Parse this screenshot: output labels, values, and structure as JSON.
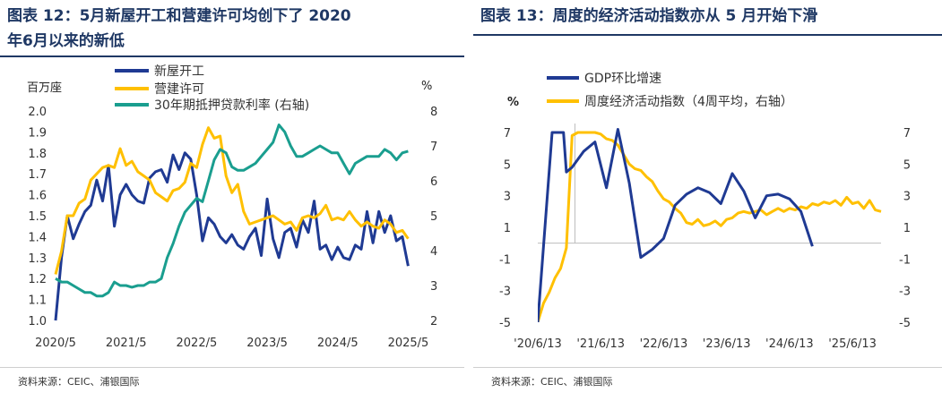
{
  "left": {
    "title_line1": "图表 12：5月新屋开工和营建许可均创下了 2020",
    "title_line2": "年6月以来的新低",
    "source": "资料来源：CEIC、浦银国际",
    "colors": {
      "starts": "#1f3a93",
      "permits": "#ffc000",
      "rate": "#1a9e8f"
    },
    "chart_data": {
      "type": "line",
      "left_axis_unit": "百万座",
      "right_axis_unit": "%",
      "x_tick_labels": [
        "2020/5",
        "2021/5",
        "2022/5",
        "2023/5",
        "2024/5",
        "2025/5"
      ],
      "y_left_ticks": [
        "1.0",
        "1.1",
        "1.2",
        "1.3",
        "1.4",
        "1.5",
        "1.6",
        "1.7",
        "1.8",
        "1.9",
        "2.0"
      ],
      "y_right_ticks": [
        "2",
        "3",
        "4",
        "5",
        "6",
        "7",
        "8"
      ],
      "y_left_range": [
        1.0,
        2.0
      ],
      "y_right_range": [
        2,
        8
      ],
      "x_range": [
        0,
        61
      ],
      "series": [
        {
          "name": "新屋开工",
          "axis": "left",
          "color": "#1f3a93",
          "x": [
            0,
            1,
            2,
            3,
            4,
            5,
            6,
            7,
            8,
            9,
            10,
            11,
            12,
            13,
            14,
            15,
            16,
            17,
            18,
            19,
            20,
            21,
            22,
            23,
            24,
            25,
            26,
            27,
            28,
            29,
            30,
            31,
            32,
            33,
            34,
            35,
            36,
            37,
            38,
            39,
            40,
            41,
            42,
            43,
            44,
            45,
            46,
            47,
            48,
            49,
            50,
            51,
            52,
            53,
            54,
            55,
            56,
            57,
            58,
            59,
            60
          ],
          "values": [
            1.0,
            1.3,
            1.5,
            1.39,
            1.46,
            1.52,
            1.55,
            1.67,
            1.57,
            1.74,
            1.45,
            1.6,
            1.65,
            1.6,
            1.57,
            1.56,
            1.68,
            1.71,
            1.72,
            1.66,
            1.79,
            1.72,
            1.8,
            1.77,
            1.6,
            1.38,
            1.49,
            1.46,
            1.4,
            1.37,
            1.41,
            1.36,
            1.34,
            1.4,
            1.44,
            1.31,
            1.58,
            1.39,
            1.3,
            1.42,
            1.44,
            1.35,
            1.48,
            1.42,
            1.57,
            1.34,
            1.36,
            1.29,
            1.35,
            1.3,
            1.29,
            1.36,
            1.34,
            1.52,
            1.37,
            1.52,
            1.42,
            1.5,
            1.38,
            1.4,
            1.26
          ]
        },
        {
          "name": "营建许可",
          "axis": "left",
          "color": "#ffc000",
          "x": [
            0,
            1,
            2,
            3,
            4,
            5,
            6,
            7,
            8,
            9,
            10,
            11,
            12,
            13,
            14,
            15,
            16,
            17,
            18,
            19,
            20,
            21,
            22,
            23,
            24,
            25,
            26,
            27,
            28,
            29,
            30,
            31,
            32,
            33,
            34,
            35,
            36,
            37,
            38,
            39,
            40,
            41,
            42,
            43,
            44,
            45,
            46,
            47,
            48,
            49,
            50,
            51,
            52,
            53,
            54,
            55,
            56,
            57,
            58,
            59,
            60
          ],
          "values": [
            1.22,
            1.33,
            1.5,
            1.5,
            1.56,
            1.58,
            1.67,
            1.7,
            1.73,
            1.74,
            1.73,
            1.82,
            1.74,
            1.76,
            1.71,
            1.69,
            1.67,
            1.61,
            1.59,
            1.57,
            1.62,
            1.63,
            1.66,
            1.75,
            1.73,
            1.84,
            1.92,
            1.87,
            1.88,
            1.69,
            1.61,
            1.65,
            1.52,
            1.46,
            1.47,
            1.48,
            1.49,
            1.5,
            1.48,
            1.46,
            1.47,
            1.43,
            1.49,
            1.5,
            1.49,
            1.51,
            1.55,
            1.48,
            1.49,
            1.48,
            1.52,
            1.48,
            1.45,
            1.47,
            1.45,
            1.44,
            1.48,
            1.46,
            1.42,
            1.43,
            1.39
          ]
        },
        {
          "name": "30年期抵押贷款利率 (右轴)",
          "axis": "right",
          "color": "#1a9e8f",
          "x": [
            0,
            1,
            2,
            3,
            4,
            5,
            6,
            7,
            8,
            9,
            10,
            11,
            12,
            13,
            14,
            15,
            16,
            17,
            18,
            19,
            20,
            21,
            22,
            23,
            24,
            25,
            26,
            27,
            28,
            29,
            30,
            31,
            32,
            33,
            34,
            35,
            36,
            37,
            38,
            39,
            40,
            41,
            42,
            43,
            44,
            45,
            46,
            47,
            48,
            49,
            50,
            51,
            52,
            53,
            54,
            55,
            56,
            57,
            58,
            59,
            60
          ],
          "values": [
            3.2,
            3.1,
            3.1,
            3.0,
            2.9,
            2.8,
            2.8,
            2.7,
            2.7,
            2.8,
            3.1,
            3.0,
            3.0,
            2.95,
            3.0,
            3.0,
            3.1,
            3.1,
            3.2,
            3.8,
            4.2,
            4.7,
            5.1,
            5.3,
            5.5,
            5.4,
            6.0,
            6.6,
            6.9,
            6.8,
            6.4,
            6.3,
            6.3,
            6.4,
            6.5,
            6.7,
            6.9,
            7.1,
            7.6,
            7.4,
            7.0,
            6.7,
            6.7,
            6.8,
            6.9,
            7.0,
            6.9,
            6.8,
            6.8,
            6.5,
            6.2,
            6.5,
            6.6,
            6.7,
            6.7,
            6.7,
            6.9,
            6.8,
            6.6,
            6.8,
            6.85
          ]
        }
      ]
    }
  },
  "right": {
    "title": "图表 13：周度的经济活动指数亦从 5 月开始下滑",
    "source": "资料来源：CEIC、浦银国际",
    "colors": {
      "gdp": "#1f3a93",
      "wei": "#ffc000"
    },
    "chart_data": {
      "type": "line",
      "left_axis_unit": "%",
      "x_tick_labels": [
        "'20/6/13",
        "'21/6/13",
        "'22/6/13",
        "'23/6/13",
        "'24/6/13",
        "'25/6/13"
      ],
      "y_left_ticks": [
        "7",
        "5",
        "3",
        "1",
        "-1",
        "-3",
        "-5"
      ],
      "y_right_ticks": [
        "7",
        "5",
        "3",
        "1",
        "-1",
        "-3",
        "-5"
      ],
      "y_range": [
        -5,
        7
      ],
      "x_range": [
        0,
        60
      ],
      "series": [
        {
          "name": "GDP环比增速",
          "axis": "left",
          "color": "#1f3a93",
          "x": [
            0,
            2.5,
            4.5,
            5,
            6,
            8,
            10,
            12,
            14,
            16,
            18,
            20,
            22,
            24,
            26,
            28,
            30,
            32,
            34,
            36,
            38,
            40,
            42,
            44,
            46,
            48
          ],
          "values": [
            -5,
            7,
            7,
            4.5,
            4.8,
            5.8,
            6.4,
            3.5,
            7.2,
            3.8,
            -0.9,
            -0.4,
            0.3,
            2.4,
            3.1,
            3.5,
            3.2,
            2.5,
            4.4,
            3.3,
            1.6,
            3.0,
            3.1,
            2.8,
            2.0,
            -0.2
          ]
        },
        {
          "name": "周度经济活动指数（4周平均，右轴）",
          "axis": "right",
          "color": "#ffc000",
          "x": [
            0,
            1,
            2,
            3,
            4,
            5,
            6,
            7,
            8,
            9,
            10,
            11,
            12,
            13,
            14,
            15,
            16,
            17,
            18,
            19,
            20,
            21,
            22,
            23,
            24,
            25,
            26,
            27,
            28,
            29,
            30,
            31,
            32,
            33,
            34,
            35,
            36,
            37,
            38,
            39,
            40,
            41,
            42,
            43,
            44,
            45,
            46,
            47,
            48,
            49,
            50,
            51,
            52,
            53,
            54,
            55,
            56,
            57,
            58,
            59,
            60
          ],
          "values": [
            -5,
            -3.8,
            -3.1,
            -2.2,
            -1.6,
            -0.3,
            6.8,
            7,
            7,
            7,
            7,
            6.9,
            6.6,
            6.5,
            6.2,
            5.6,
            5.0,
            4.7,
            4.6,
            4.2,
            3.9,
            3.3,
            2.8,
            2.6,
            2.2,
            1.9,
            1.3,
            1.2,
            1.5,
            1.1,
            1.2,
            1.4,
            1.1,
            1.5,
            1.6,
            1.9,
            2.0,
            1.9,
            2.0,
            2.1,
            1.8,
            2.0,
            2.2,
            2.0,
            2.2,
            2.1,
            2.3,
            2.2,
            2.5,
            2.4,
            2.6,
            2.5,
            2.7,
            2.4,
            2.9,
            2.5,
            2.6,
            2.2,
            2.7,
            2.1,
            2.0
          ]
        }
      ]
    }
  }
}
